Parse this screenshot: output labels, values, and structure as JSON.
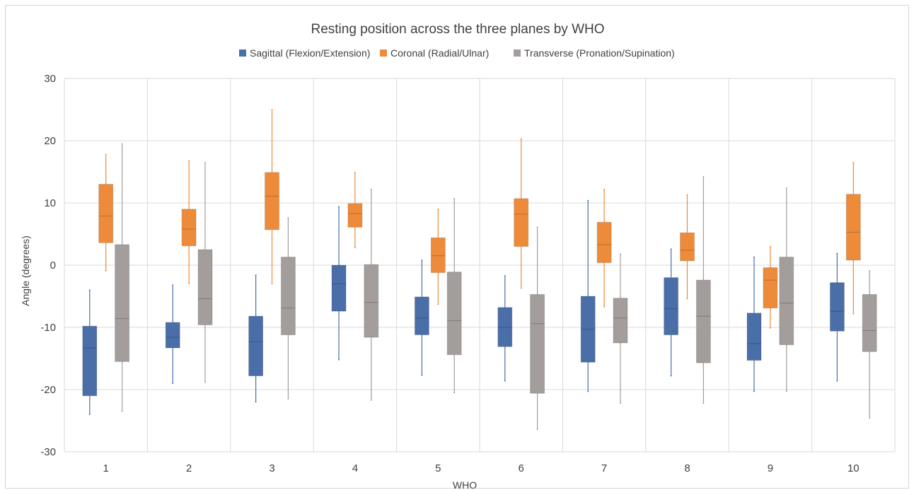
{
  "chart_data": {
    "type": "boxplot",
    "title": "Resting position across the three planes by WHO",
    "xlabel": "WHO",
    "ylabel": "Angle (degrees)",
    "categories": [
      "1",
      "2",
      "3",
      "4",
      "5",
      "6",
      "7",
      "8",
      "9",
      "10"
    ],
    "ylim": [
      -30,
      30
    ],
    "yticks": [
      "30",
      "20",
      "10",
      "0",
      "-10",
      "-20",
      "-30"
    ],
    "grid": true,
    "legend_position": "top",
    "series": [
      {
        "name": "Sagittal (Flexion/Extension)",
        "color": "#4a6ea8",
        "boxes": [
          {
            "min": -24,
            "q1": -21,
            "median": -13.3,
            "q3": -9.8,
            "max": -4
          },
          {
            "min": -19,
            "q1": -13.3,
            "median": -11.6,
            "q3": -9.2,
            "max": -3.2
          },
          {
            "min": -22,
            "q1": -17.8,
            "median": -12.3,
            "q3": -8.2,
            "max": -1.6
          },
          {
            "min": -15.2,
            "q1": -7.4,
            "median": -3,
            "q3": 0,
            "max": 9.4
          },
          {
            "min": -17.7,
            "q1": -11.2,
            "median": -8.5,
            "q3": -5.1,
            "max": 0.8
          },
          {
            "min": -18.6,
            "q1": -13.1,
            "median": -10,
            "q3": -6.8,
            "max": -1.7
          },
          {
            "min": -20.3,
            "q1": -15.6,
            "median": -10.3,
            "q3": -5,
            "max": 10.4
          },
          {
            "min": -17.8,
            "q1": -11.2,
            "median": -7,
            "q3": -2,
            "max": 2.6
          },
          {
            "min": -20.3,
            "q1": -15.3,
            "median": -12.6,
            "q3": -7.7,
            "max": 1.3
          },
          {
            "min": -18.6,
            "q1": -10.6,
            "median": -7.4,
            "q3": -2.8,
            "max": 1.9
          }
        ]
      },
      {
        "name": "Coronal (Radial/Ulnar)",
        "color": "#ed8b3b",
        "boxes": [
          {
            "min": -0.9,
            "q1": 3.6,
            "median": 7.9,
            "q3": 13,
            "max": 17.8
          },
          {
            "min": -3,
            "q1": 3.1,
            "median": 5.8,
            "q3": 9,
            "max": 16.8
          },
          {
            "min": -3,
            "q1": 5.7,
            "median": 11.1,
            "q3": 14.9,
            "max": 25
          },
          {
            "min": 2.8,
            "q1": 6.1,
            "median": 8.3,
            "q3": 9.9,
            "max": 14.9
          },
          {
            "min": -6.3,
            "q1": -1.2,
            "median": 1.5,
            "q3": 4.4,
            "max": 9
          },
          {
            "min": -3.7,
            "q1": 3,
            "median": 8.2,
            "q3": 10.7,
            "max": 20.3
          },
          {
            "min": -6.7,
            "q1": 0.4,
            "median": 3.3,
            "q3": 6.9,
            "max": 12.2
          },
          {
            "min": -5.4,
            "q1": 0.7,
            "median": 2.4,
            "q3": 5.2,
            "max": 11.3
          },
          {
            "min": -10.1,
            "q1": -6.9,
            "median": -2.4,
            "q3": -0.4,
            "max": 3
          },
          {
            "min": -7.8,
            "q1": 0.8,
            "median": 5.3,
            "q3": 11.4,
            "max": 16.5
          }
        ]
      },
      {
        "name": "Transverse (Pronation/Supination)",
        "color": "#a39d9b",
        "boxes": [
          {
            "min": -23.5,
            "q1": -15.5,
            "median": -8.6,
            "q3": 3.3,
            "max": 19.5
          },
          {
            "min": -18.8,
            "q1": -9.6,
            "median": -5.4,
            "q3": 2.5,
            "max": 16.5
          },
          {
            "min": -21.5,
            "q1": -11.2,
            "median": -6.9,
            "q3": 1.3,
            "max": 7.6
          },
          {
            "min": -21.7,
            "q1": -11.6,
            "median": -6,
            "q3": 0.1,
            "max": 12.2
          },
          {
            "min": -20.5,
            "q1": -14.4,
            "median": -8.9,
            "q3": -1.1,
            "max": 10.7
          },
          {
            "min": -26.4,
            "q1": -20.6,
            "median": -9.4,
            "q3": -4.7,
            "max": 6.1
          },
          {
            "min": -22.2,
            "q1": -12.5,
            "median": -8.5,
            "q3": -5.3,
            "max": 1.8
          },
          {
            "min": -22.2,
            "q1": -15.7,
            "median": -8.2,
            "q3": -2.4,
            "max": 14.2
          },
          {
            "min": -20.3,
            "q1": -12.8,
            "median": -6.1,
            "q3": 1.3,
            "max": 12.4
          },
          {
            "min": -24.6,
            "q1": -13.9,
            "median": -10.5,
            "q3": -4.7,
            "max": -0.9
          }
        ]
      }
    ]
  }
}
